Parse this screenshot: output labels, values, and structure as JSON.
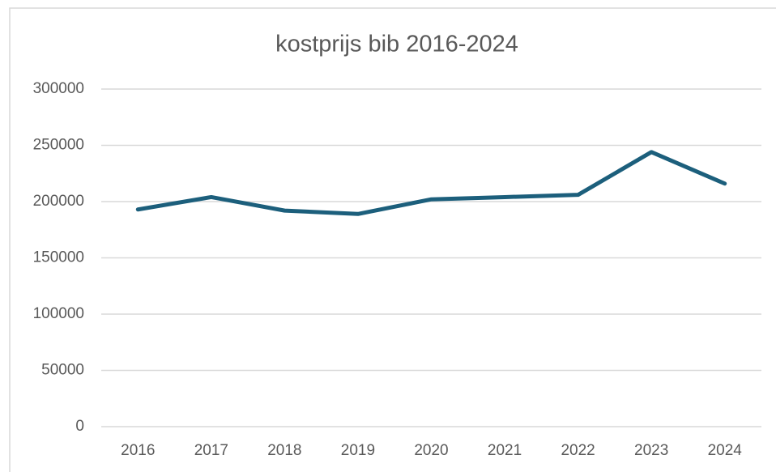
{
  "chart_data": {
    "type": "line",
    "title": "kostprijs bib 2016-2024",
    "categories": [
      "2016",
      "2017",
      "2018",
      "2019",
      "2020",
      "2021",
      "2022",
      "2023",
      "2024"
    ],
    "series": [
      {
        "name": "kostprijs",
        "color": "#1c5f7c",
        "values": [
          193000,
          204000,
          192000,
          189000,
          202000,
          204000,
          206000,
          244000,
          216000
        ]
      }
    ],
    "ylim": [
      0,
      300000
    ],
    "yticks": [
      0,
      50000,
      100000,
      150000,
      200000,
      250000,
      300000
    ],
    "grid": true
  }
}
